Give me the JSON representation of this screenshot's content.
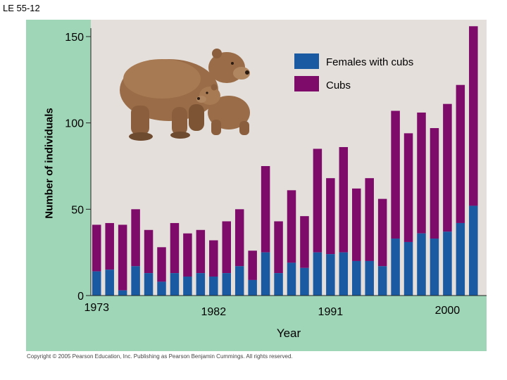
{
  "slide_label": "LE 55-12",
  "copyright": "Copyright © 2005 Pearson Education, Inc. Publishing as Pearson Benjamin Cummings. All rights reserved.",
  "colors": {
    "panel": "#9fd6b7",
    "plot": "#e5dfdb",
    "females": "#1a5aa2",
    "cubs": "#7e0a6a",
    "bear": "#9a6d48"
  },
  "chart_data": {
    "type": "bar",
    "stacked": true,
    "title": "",
    "xlabel": "Year",
    "ylabel": "Number of individuals",
    "ylim": [
      0,
      155
    ],
    "yticks": [
      0,
      50,
      100,
      150
    ],
    "x_tick_labels": [
      {
        "label": "1973",
        "year": 1973
      },
      {
        "label": "1982",
        "year": 1982
      },
      {
        "label": "1991",
        "year": 1991
      },
      {
        "label": "2000",
        "year": 2000
      }
    ],
    "categories": [
      1973,
      1974,
      1975,
      1976,
      1977,
      1978,
      1979,
      1980,
      1981,
      1982,
      1983,
      1984,
      1985,
      1986,
      1987,
      1988,
      1989,
      1990,
      1991,
      1992,
      1993,
      1994,
      1995,
      1996,
      1997,
      1998,
      1999,
      2000,
      2001,
      2002
    ],
    "series": [
      {
        "name": "Females with cubs",
        "values": [
          14,
          15,
          3,
          17,
          13,
          8,
          13,
          11,
          13,
          11,
          13,
          17,
          9,
          25,
          13,
          19,
          16,
          25,
          24,
          25,
          20,
          20,
          17,
          33,
          31,
          36,
          33,
          37,
          42,
          52
        ]
      },
      {
        "name": "Cubs",
        "values": [
          27,
          27,
          38,
          33,
          25,
          20,
          29,
          25,
          25,
          21,
          30,
          33,
          17,
          50,
          30,
          42,
          30,
          60,
          44,
          61,
          42,
          48,
          39,
          74,
          63,
          70,
          64,
          74,
          80,
          104
        ]
      }
    ],
    "legend": [
      "Females with cubs",
      "Cubs"
    ],
    "legend_position": "top-right"
  }
}
